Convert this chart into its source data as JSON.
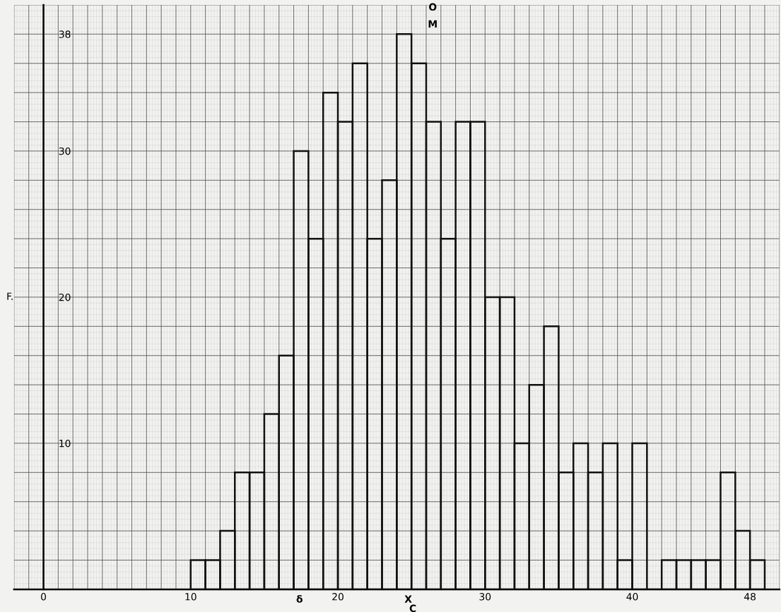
{
  "chart_data": {
    "type": "histogram",
    "ylabel": "F.",
    "bins": [
      10,
      11,
      12,
      13,
      14,
      15,
      16,
      17,
      18,
      19,
      20,
      21,
      22,
      23,
      24,
      25,
      26,
      27,
      28,
      29,
      30,
      31,
      32,
      33,
      34,
      35,
      36,
      37,
      38,
      39,
      40,
      41,
      42,
      43,
      44,
      45,
      46,
      47,
      48,
      49
    ],
    "values": [
      2,
      2,
      4,
      8,
      8,
      12,
      16,
      30,
      24,
      34,
      32,
      36,
      24,
      28,
      38,
      36,
      32,
      24,
      32,
      32,
      20,
      20,
      10,
      14,
      18,
      8,
      10,
      8,
      10,
      2,
      10,
      0,
      2,
      2,
      2,
      2,
      8,
      4,
      2
    ],
    "color": "#111111",
    "xlim": [
      -2,
      50
    ],
    "ylim": [
      0,
      40
    ],
    "xticks": [
      0,
      10,
      20,
      30,
      40,
      48
    ],
    "yticks": [
      10,
      20,
      30,
      38
    ],
    "grid": true,
    "annotations": [
      "O",
      "M",
      "δ",
      "X",
      "C"
    ]
  }
}
